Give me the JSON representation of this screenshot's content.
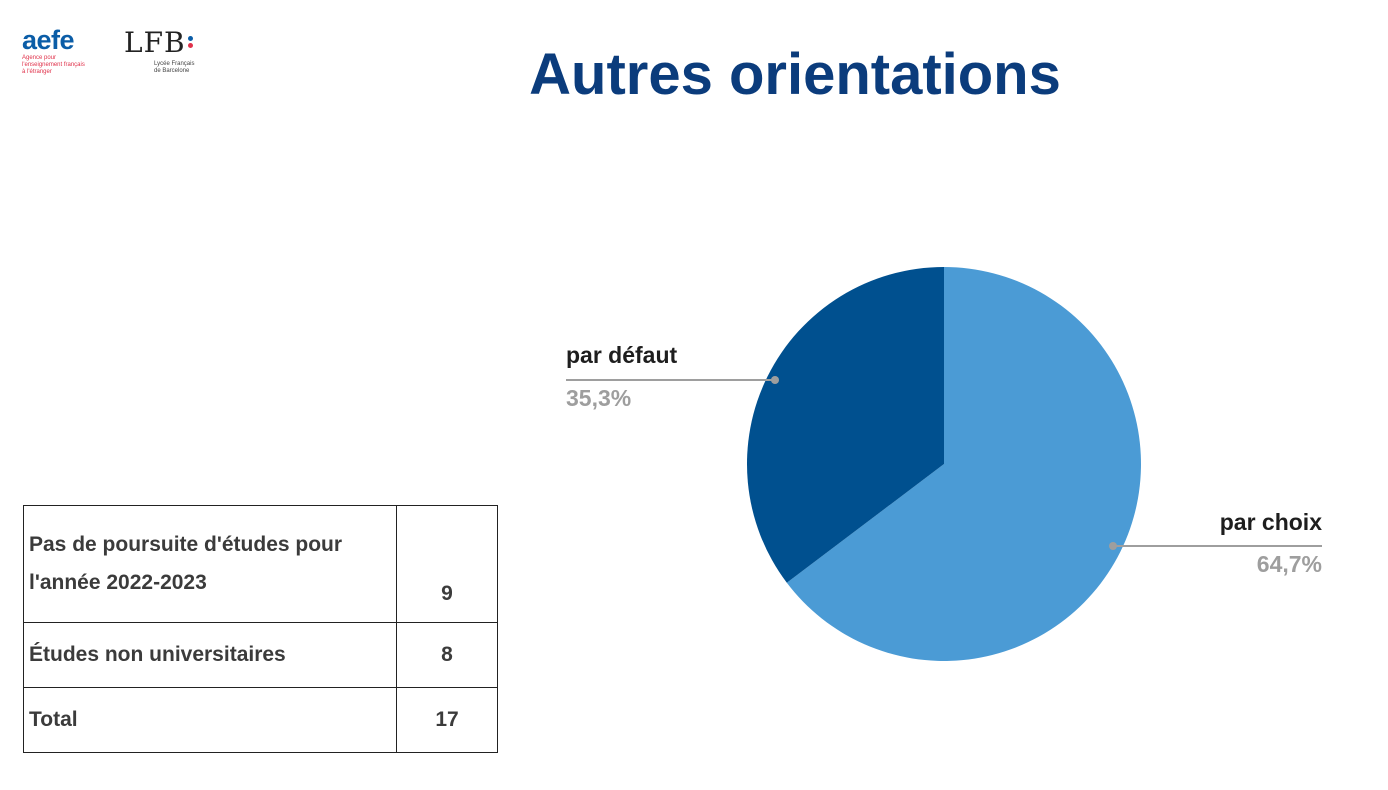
{
  "header": {
    "title": "Autres orientations",
    "logo_aefe": {
      "word": "aefe",
      "tagline": [
        "Agence pour",
        "l'enseignement français",
        "à l'étranger"
      ]
    },
    "logo_lfb": {
      "word": "LFB",
      "tagline": [
        "Lycée Français",
        "de Barcelone"
      ]
    }
  },
  "table": {
    "rows": [
      {
        "label": "Pas de poursuite d'études pour l'année 2022-2023",
        "value": "9"
      },
      {
        "label": "Études non universitaires",
        "value": "8"
      },
      {
        "label": "Total",
        "value": "17"
      }
    ]
  },
  "chart_data": {
    "type": "pie",
    "title": "",
    "slices": [
      {
        "label": "par choix",
        "value": 64.7,
        "display": "64,7%",
        "color": "#4b9bd5"
      },
      {
        "label": "par défaut",
        "value": 35.3,
        "display": "35,3%",
        "color": "#00508f"
      }
    ],
    "start": "top, clockwise",
    "leader_color": "#9e9e9e"
  }
}
